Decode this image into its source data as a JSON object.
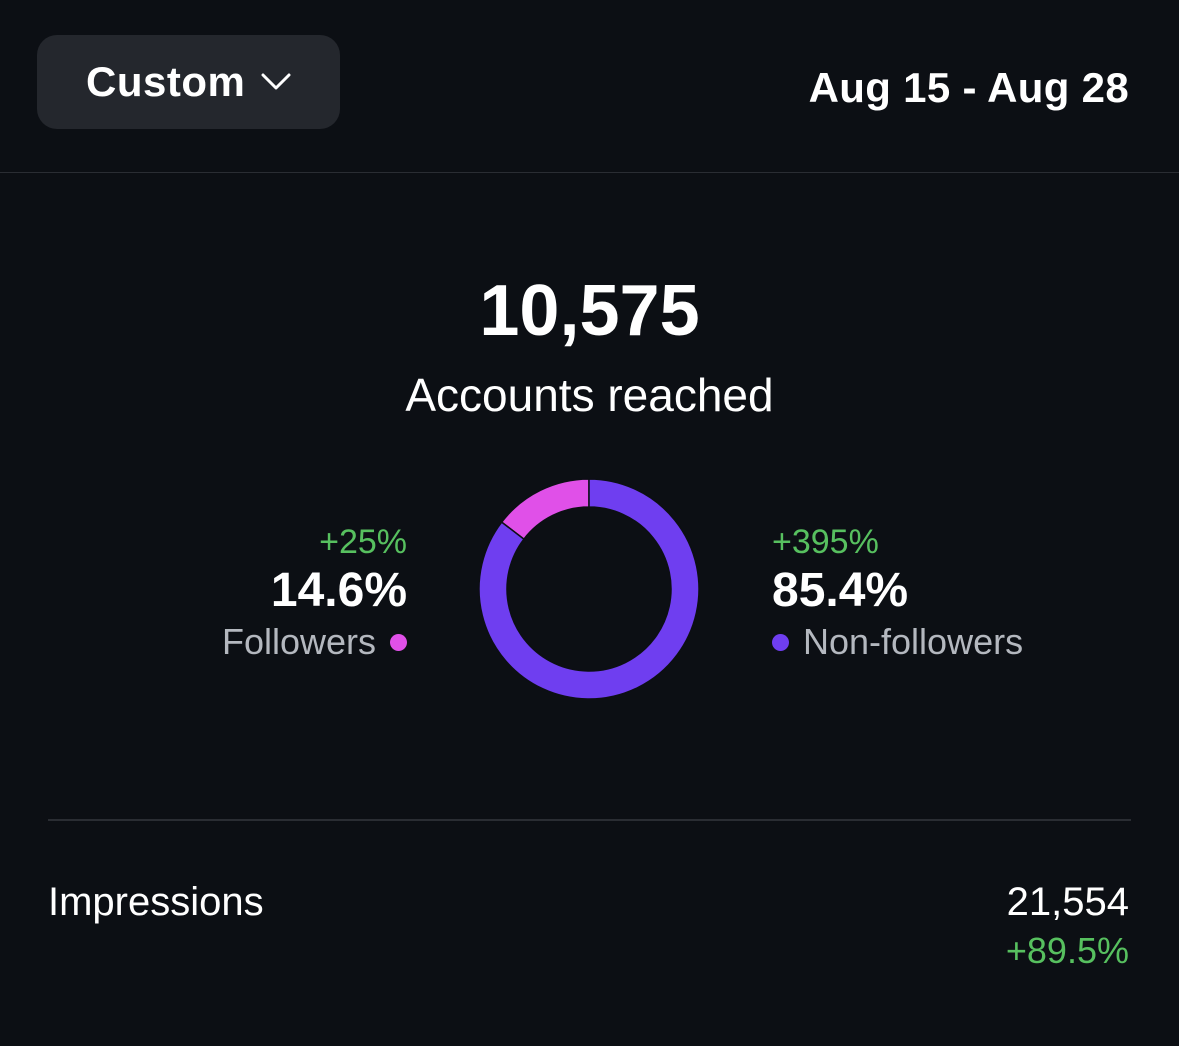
{
  "header": {
    "range_selector_label": "Custom",
    "range_selector_icon": "chevron-down-icon",
    "date_range": "Aug 15 - Aug 28"
  },
  "reach": {
    "value": "10,575",
    "caption": "Accounts reached"
  },
  "breakdown": {
    "followers": {
      "delta": "+25%",
      "percent": "14.6%",
      "label": "Followers",
      "color": "#e050e8"
    },
    "non_followers": {
      "delta": "+395%",
      "percent": "85.4%",
      "label": "Non-followers",
      "color": "#6f3ef0"
    }
  },
  "chart_data": {
    "type": "pie",
    "categories": [
      "Followers",
      "Non-followers"
    ],
    "values": [
      14.6,
      85.4
    ],
    "colors": [
      "#e050e8",
      "#6f3ef0"
    ],
    "title": "",
    "style": "donut"
  },
  "impressions": {
    "label": "Impressions",
    "value": "21,554",
    "delta": "+89.5%"
  },
  "colors": {
    "background": "#0c0f14",
    "button_bg": "#24272d",
    "positive": "#57c05f",
    "secondary_text": "#b4b8bf"
  }
}
